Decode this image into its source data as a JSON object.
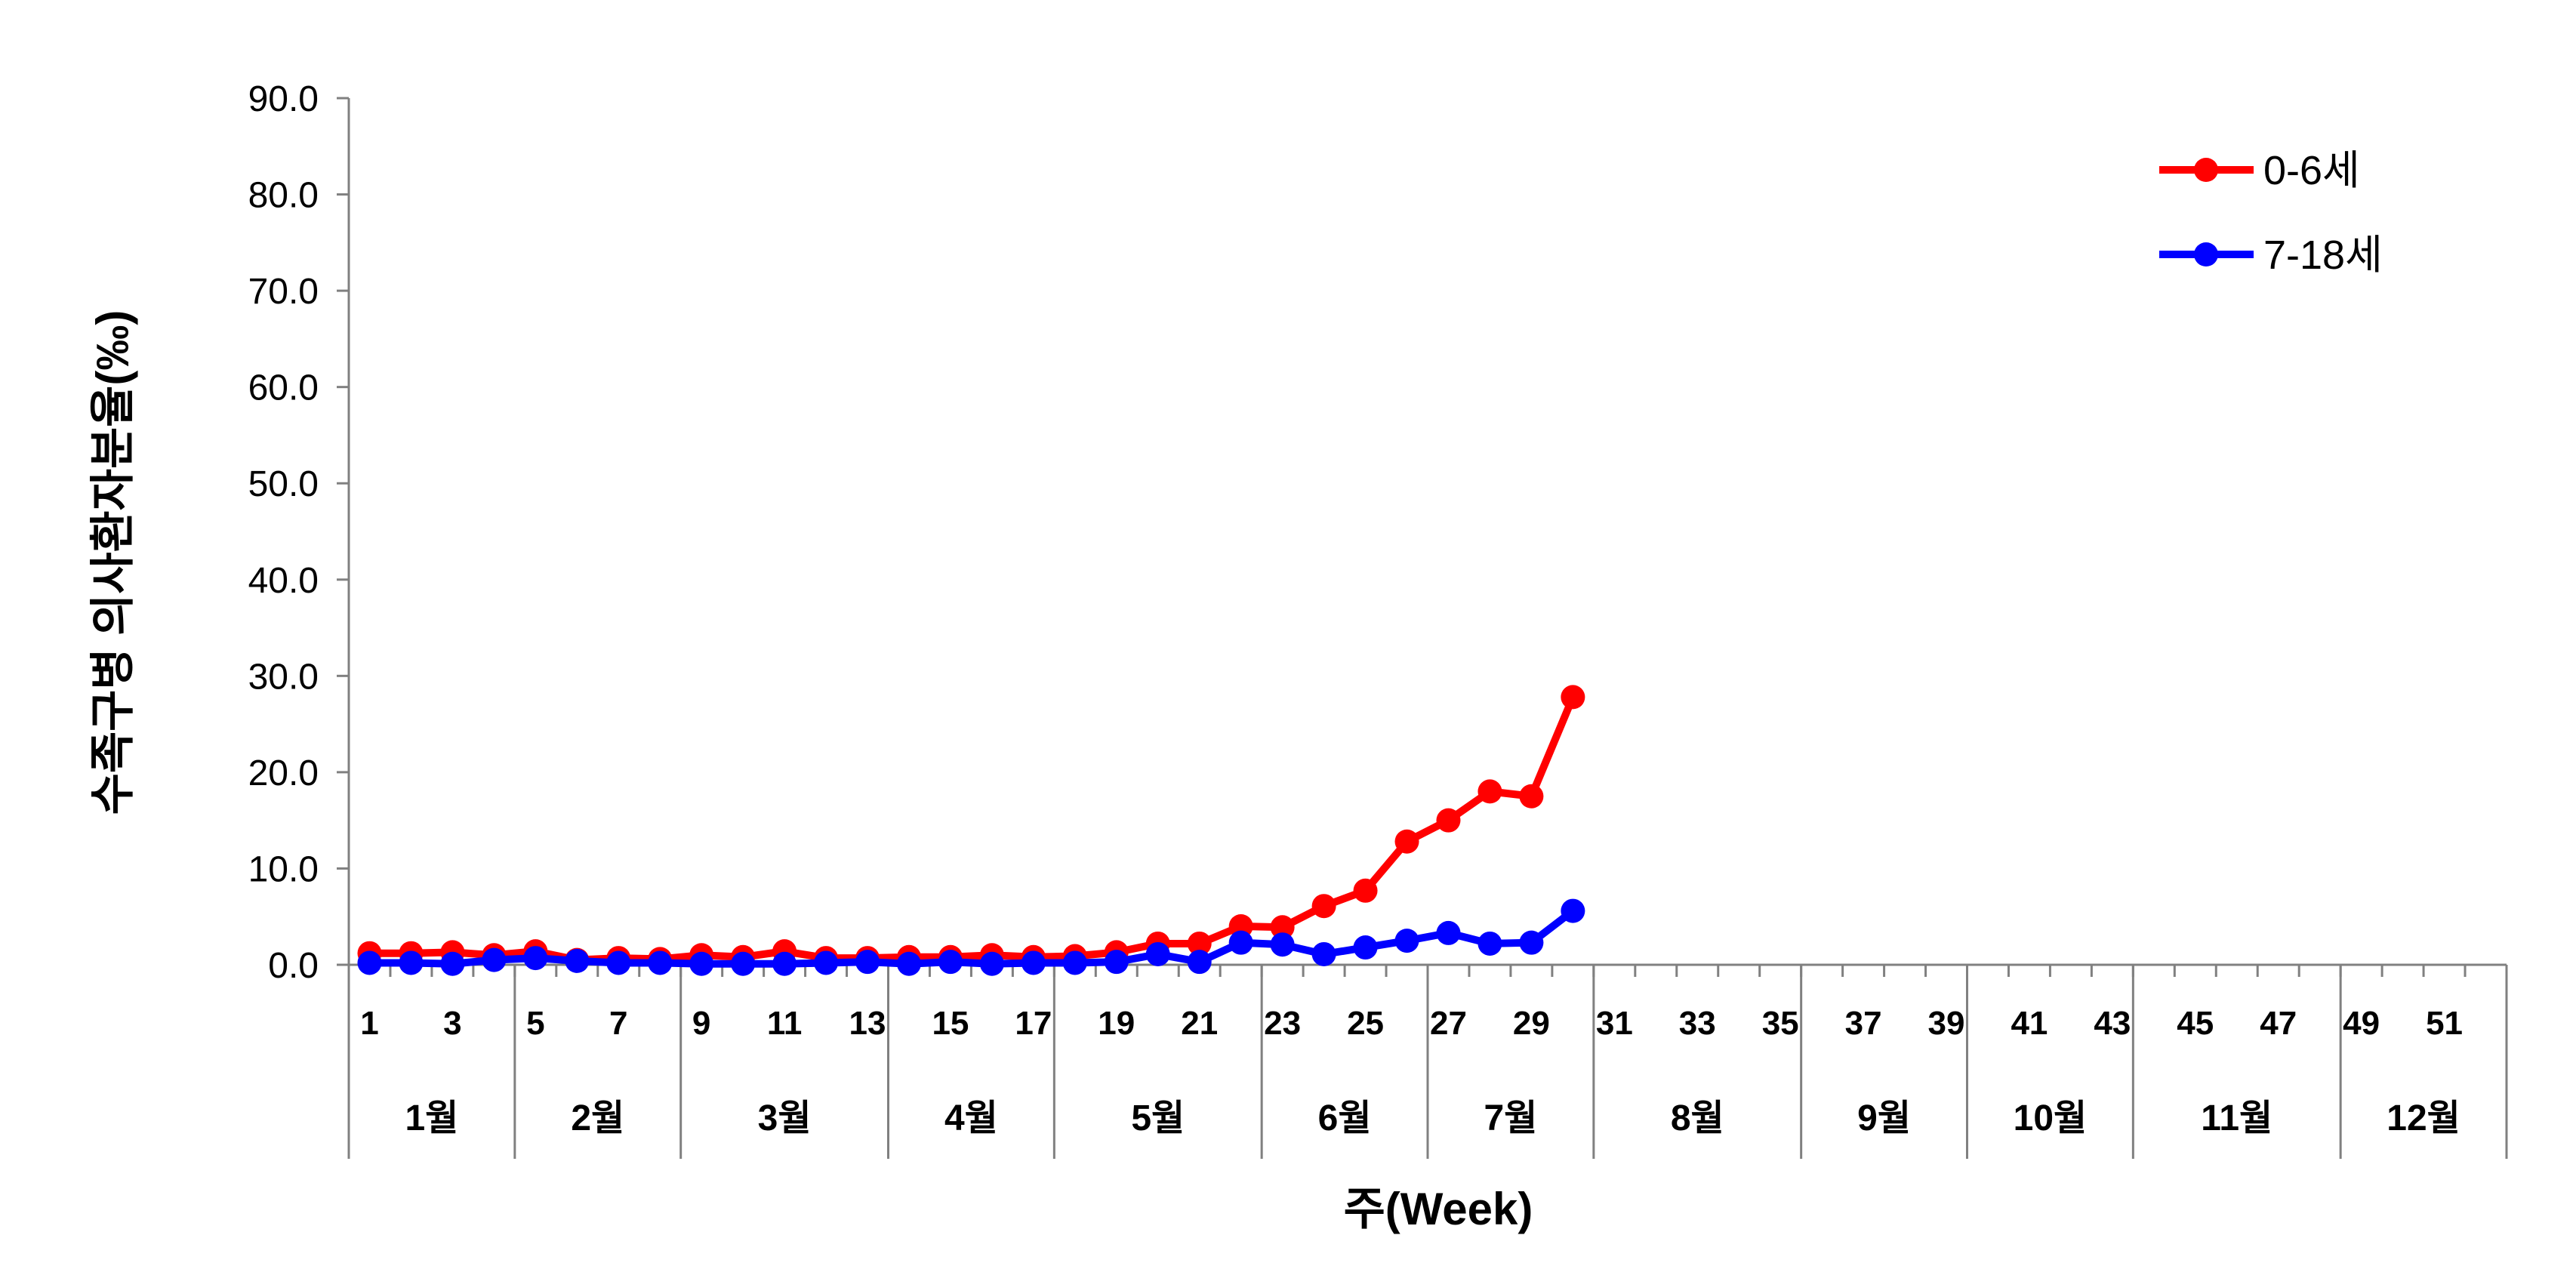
{
  "chart_data": {
    "type": "line",
    "title": "",
    "ylabel": "수족구병 의사환자분율(‰)",
    "xlabel": "주(Week)",
    "ylim": [
      0,
      90
    ],
    "yticks": [
      "0.0",
      "10.0",
      "20.0",
      "30.0",
      "40.0",
      "50.0",
      "60.0",
      "70.0",
      "80.0",
      "90.0"
    ],
    "week_count": 52,
    "x_tick_labels": [
      "1",
      "3",
      "5",
      "7",
      "9",
      "11",
      "13",
      "15",
      "17",
      "19",
      "21",
      "23",
      "25",
      "27",
      "29",
      "31",
      "33",
      "35",
      "37",
      "39",
      "41",
      "43",
      "45",
      "47",
      "49",
      "51"
    ],
    "months": [
      {
        "label": "1월",
        "start_week": 1,
        "end_week": 4
      },
      {
        "label": "2월",
        "start_week": 5,
        "end_week": 8
      },
      {
        "label": "3월",
        "start_week": 9,
        "end_week": 13
      },
      {
        "label": "4월",
        "start_week": 14,
        "end_week": 17
      },
      {
        "label": "5월",
        "start_week": 18,
        "end_week": 22
      },
      {
        "label": "6월",
        "start_week": 23,
        "end_week": 26
      },
      {
        "label": "7월",
        "start_week": 27,
        "end_week": 30
      },
      {
        "label": "8월",
        "start_week": 31,
        "end_week": 35
      },
      {
        "label": "9월",
        "start_week": 36,
        "end_week": 39
      },
      {
        "label": "10월",
        "start_week": 40,
        "end_week": 43
      },
      {
        "label": "11월",
        "start_week": 44,
        "end_week": 48
      },
      {
        "label": "12월",
        "start_week": 49,
        "end_week": 52
      }
    ],
    "legend_position": "top-right",
    "series": [
      {
        "name": "0-6세",
        "color": "#ff0000",
        "values": [
          1.2,
          1.2,
          1.3,
          1.0,
          1.4,
          0.5,
          0.7,
          0.6,
          1.0,
          0.8,
          1.4,
          0.7,
          0.7,
          0.8,
          0.8,
          1.0,
          0.8,
          0.9,
          1.3,
          2.2,
          2.2,
          4.0,
          3.9,
          6.1,
          7.7,
          12.8,
          15.0,
          18.0,
          17.5,
          27.8
        ]
      },
      {
        "name": "7-18세",
        "color": "#0000ff",
        "values": [
          0.2,
          0.2,
          0.1,
          0.5,
          0.7,
          0.4,
          0.2,
          0.2,
          0.1,
          0.1,
          0.1,
          0.2,
          0.3,
          0.1,
          0.3,
          0.1,
          0.2,
          0.2,
          0.3,
          1.1,
          0.3,
          2.3,
          2.1,
          1.1,
          1.8,
          2.5,
          3.3,
          2.2,
          2.3,
          5.6
        ]
      }
    ]
  }
}
